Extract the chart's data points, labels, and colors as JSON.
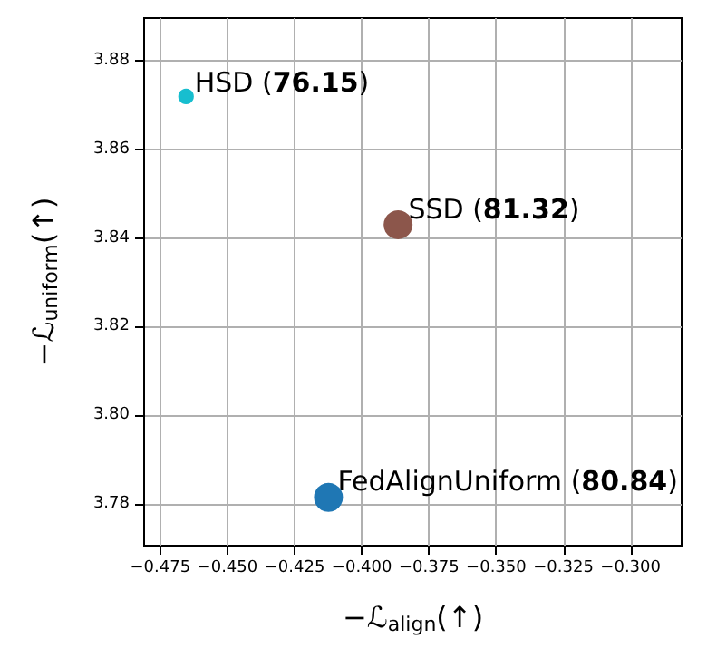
{
  "chart_data": {
    "type": "bubble",
    "xlabel": "−ℒ$_{align}$(↑)",
    "ylabel": "−ℒ$_{uniform}$(↑)",
    "xlim": [
      -0.481,
      -0.281
    ],
    "ylim": [
      3.7705,
      3.8897
    ],
    "xticks": [
      {
        "value": -0.475,
        "label": "−0.475"
      },
      {
        "value": -0.45,
        "label": "−0.450"
      },
      {
        "value": -0.425,
        "label": "−0.425"
      },
      {
        "value": -0.4,
        "label": "−0.400"
      },
      {
        "value": -0.375,
        "label": "−0.375"
      },
      {
        "value": -0.35,
        "label": "−0.350"
      },
      {
        "value": -0.325,
        "label": "−0.325"
      },
      {
        "value": -0.3,
        "label": "−0.300"
      }
    ],
    "yticks": [
      {
        "value": 3.78,
        "label": "3.78"
      },
      {
        "value": 3.8,
        "label": "3.80"
      },
      {
        "value": 3.82,
        "label": "3.82"
      },
      {
        "value": 3.84,
        "label": "3.84"
      },
      {
        "value": 3.86,
        "label": "3.86"
      },
      {
        "value": 3.88,
        "label": "3.88"
      }
    ],
    "grid": true,
    "series": [
      {
        "color": "#17becf",
        "x": [
          -0.4654
        ],
        "values": [
          3.872
        ],
        "sizes": [
          0.29
        ]
      },
      {
        "color": "#8c564b",
        "x": [
          -0.3865
        ],
        "values": [
          3.843
        ],
        "sizes": [
          1
        ]
      },
      {
        "color": "#1f77b4",
        "x": [
          -0.4124
        ],
        "values": [
          3.7814
        ],
        "sizes": [
          1
        ]
      }
    ],
    "annotations": [
      {
        "text": "HSD (76.15)",
        "x": -0.4622,
        "y": 3.8751
      },
      {
        "text": "SSD (81.32)",
        "x": -0.3827,
        "y": 3.8465
      },
      {
        "text": "FedAlignUniform (80.84)",
        "x": -0.409,
        "y": 3.785
      }
    ]
  }
}
